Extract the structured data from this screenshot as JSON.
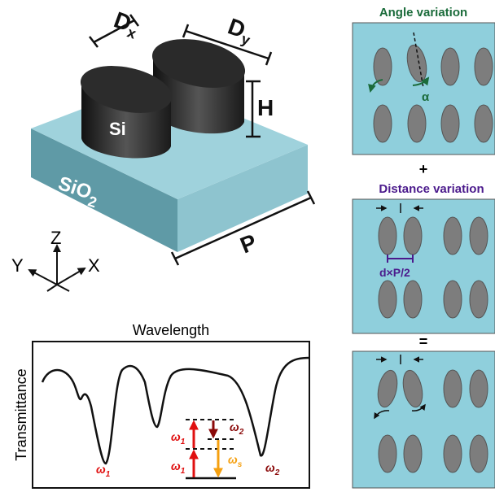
{
  "device": {
    "dx": {
      "main": "D",
      "sub": "x"
    },
    "dy": {
      "main": "D",
      "sub": "y"
    },
    "height": "H",
    "pillar": "Si",
    "substrate": {
      "main": "SiO",
      "sub": "2"
    },
    "period": "P"
  },
  "axes": {
    "z": "Z",
    "y": "Y",
    "x": "X"
  },
  "spectrum": {
    "x_label": "Wavelength",
    "y_label": "Transmittance",
    "resonances": [
      {
        "main": "ω",
        "sub": "1"
      },
      {
        "main": "ω",
        "sub": "2"
      }
    ],
    "levels": [
      {
        "main": "ω",
        "sub": "1"
      },
      {
        "main": "ω",
        "sub": "1"
      },
      {
        "main": "ω",
        "sub": "2"
      },
      {
        "main": "ω",
        "sub": "s"
      }
    ]
  },
  "panels": {
    "angle_title": "Angle variation",
    "angle_symbol": "α",
    "plus": "+",
    "distance_title": "Distance variation",
    "distance_label": "d×P/2",
    "equals": "="
  }
}
